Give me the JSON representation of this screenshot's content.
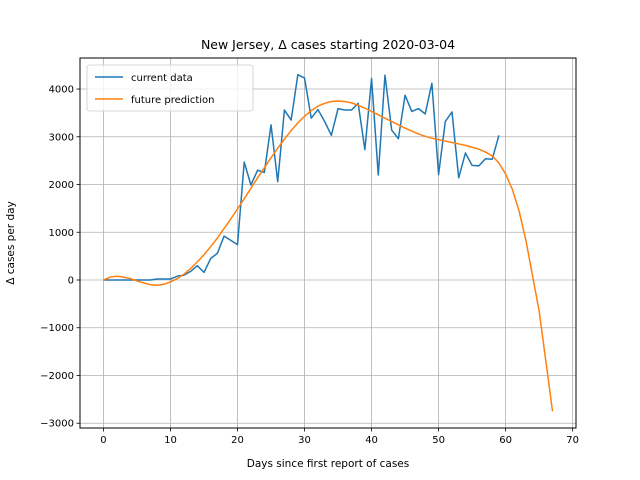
{
  "chart_data": {
    "type": "line",
    "title": "New Jersey, Δ cases starting 2020-03-04",
    "xlabel": "Days since first report of cases",
    "ylabel": "Δ cases per day",
    "xlim": [
      -3.5,
      70.5
    ],
    "ylim": [
      -3100,
      4650
    ],
    "xticks": [
      0,
      10,
      20,
      30,
      40,
      50,
      60,
      70
    ],
    "yticks": [
      -3000,
      -2000,
      -1000,
      0,
      1000,
      2000,
      3000,
      4000
    ],
    "grid": true,
    "legend_position": "top-left",
    "series": [
      {
        "name": "current data",
        "color": "#1f77b4",
        "x": [
          0,
          1,
          2,
          3,
          4,
          5,
          6,
          7,
          8,
          9,
          10,
          11,
          12,
          13,
          14,
          15,
          16,
          17,
          18,
          19,
          20,
          21,
          22,
          23,
          24,
          25,
          26,
          27,
          28,
          29,
          30,
          31,
          32,
          33,
          34,
          35,
          36,
          37,
          38,
          39,
          40,
          41,
          42,
          43,
          44,
          45,
          46,
          47,
          48,
          49,
          50,
          51,
          52,
          53,
          54,
          55,
          56,
          57,
          58,
          59
        ],
        "y": [
          0,
          0,
          0,
          0,
          0,
          0,
          0,
          0,
          20,
          20,
          20,
          80,
          100,
          180,
          300,
          160,
          450,
          560,
          920,
          830,
          740,
          2470,
          1990,
          2300,
          2250,
          3250,
          2060,
          3560,
          3350,
          4300,
          4230,
          3390,
          3570,
          3320,
          3030,
          3590,
          3560,
          3560,
          3700,
          2730,
          4220,
          2200,
          4290,
          3140,
          2960,
          3870,
          3530,
          3590,
          3480,
          4120,
          2210,
          3320,
          3520,
          2140,
          2660,
          2400,
          2390,
          2540,
          2530,
          3030
        ]
      },
      {
        "name": "future prediction",
        "color": "#ff7f0e",
        "x": [
          0,
          1,
          2,
          3,
          4,
          5,
          6,
          7,
          8,
          9,
          10,
          11,
          12,
          13,
          14,
          15,
          16,
          17,
          18,
          19,
          20,
          21,
          22,
          23,
          24,
          25,
          26,
          27,
          28,
          29,
          30,
          31,
          32,
          33,
          34,
          35,
          36,
          37,
          38,
          39,
          40,
          41,
          42,
          43,
          44,
          45,
          46,
          47,
          48,
          49,
          50,
          51,
          52,
          53,
          54,
          55,
          56,
          57,
          58,
          59,
          60,
          61,
          62,
          63,
          64,
          65,
          66,
          67
        ],
        "y": [
          0,
          60,
          80,
          60,
          30,
          -20,
          -60,
          -100,
          -110,
          -90,
          -40,
          30,
          120,
          240,
          380,
          530,
          700,
          880,
          1080,
          1280,
          1490,
          1700,
          1920,
          2140,
          2350,
          2560,
          2760,
          2950,
          3130,
          3290,
          3430,
          3550,
          3640,
          3700,
          3740,
          3750,
          3740,
          3710,
          3660,
          3600,
          3530,
          3460,
          3390,
          3320,
          3250,
          3180,
          3120,
          3060,
          3010,
          2970,
          2940,
          2910,
          2880,
          2850,
          2820,
          2780,
          2740,
          2680,
          2600,
          2450,
          2220,
          1900,
          1450,
          850,
          100,
          -650,
          -1700,
          -2750
        ]
      }
    ]
  }
}
